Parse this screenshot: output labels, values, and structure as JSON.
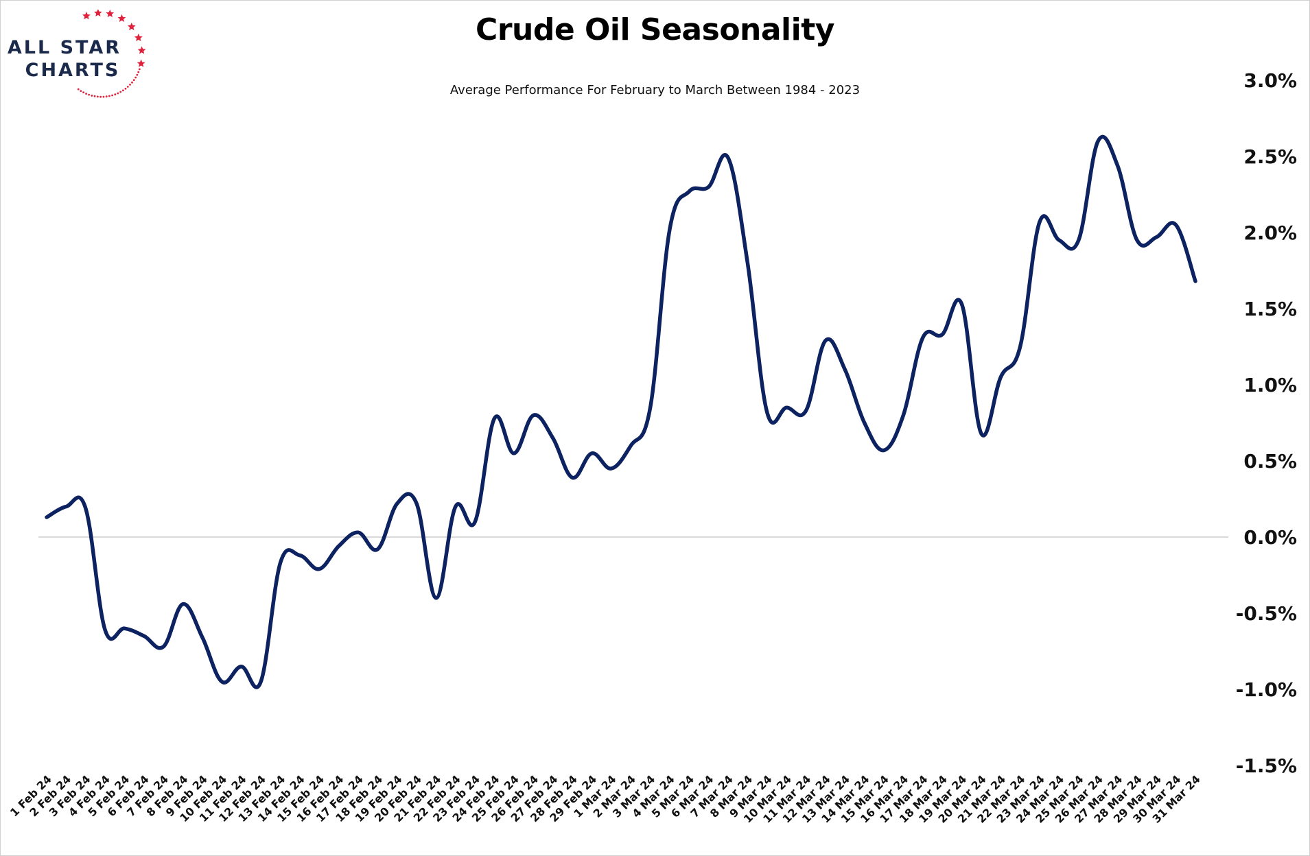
{
  "logo": {
    "line1": "ALL STAR",
    "line2": "CHARTS",
    "primary_color": "#1b2a4a",
    "star_color": "#e0213b"
  },
  "chart_data": {
    "type": "line",
    "title": "Crude Oil Seasonality",
    "subtitle": "Average Performance For February to March Between 1984 - 2023",
    "xlabel": "",
    "ylabel": "",
    "ylim": [
      -1.5,
      3.0
    ],
    "yticks": [
      -1.5,
      -1.0,
      -0.5,
      0.0,
      0.5,
      1.0,
      1.5,
      2.0,
      2.5,
      3.0
    ],
    "ytick_labels": [
      "-1.5%",
      "-1.0%",
      "-0.5%",
      "0.0%",
      "0.5%",
      "1.0%",
      "1.5%",
      "2.0%",
      "2.5%",
      "3.0%"
    ],
    "y_axis_position": "right",
    "zero_line": true,
    "grid": false,
    "line_color": "#0d2260",
    "categories": [
      "1 Feb 24",
      "2 Feb 24",
      "3 Feb 24",
      "4 Feb 24",
      "5 Feb 24",
      "6 Feb 24",
      "7 Feb 24",
      "8 Feb 24",
      "9 Feb 24",
      "10 Feb 24",
      "11 Feb 24",
      "12 Feb 24",
      "13 Feb 24",
      "14 Feb 24",
      "15 Feb 24",
      "16 Feb 24",
      "17 Feb 24",
      "18 Feb 24",
      "19 Feb 24",
      "20 Feb 24",
      "21 Feb 24",
      "22 Feb 24",
      "23 Feb 24",
      "24 Feb 24",
      "25 Feb 24",
      "26 Feb 24",
      "27 Feb 24",
      "28 Feb 24",
      "29 Feb 24",
      "1 Mar 24",
      "2 Mar 24",
      "3 Mar 24",
      "4 Mar 24",
      "5 Mar 24",
      "6 Mar 24",
      "7 Mar 24",
      "8 Mar 24",
      "9 Mar 24",
      "10 Mar 24",
      "11 Mar 24",
      "12 Mar 24",
      "13 Mar 24",
      "14 Mar 24",
      "15 Mar 24",
      "16 Mar 24",
      "17 Mar 24",
      "18 Mar 24",
      "19 Mar 24",
      "20 Mar 24",
      "21 Mar 24",
      "22 Mar 24",
      "23 Mar 24",
      "24 Mar 24",
      "25 Mar 24",
      "26 Mar 24",
      "27 Mar 24",
      "28 Mar 24",
      "29 Mar 24",
      "30 Mar 24",
      "31 Mar 24"
    ],
    "series": [
      {
        "values": [
          0.13,
          0.2,
          0.19,
          -0.61,
          -0.6,
          -0.65,
          -0.72,
          -0.44,
          -0.66,
          -0.95,
          -0.85,
          -0.95,
          -0.17,
          -0.12,
          -0.21,
          -0.06,
          0.03,
          -0.08,
          0.22,
          0.22,
          -0.4,
          0.2,
          0.1,
          0.78,
          0.55,
          0.8,
          0.65,
          0.39,
          0.55,
          0.45,
          0.6,
          0.85,
          2.02,
          2.27,
          2.3,
          2.49,
          1.8,
          0.82,
          0.85,
          0.83,
          1.29,
          1.1,
          0.75,
          0.57,
          0.8,
          1.31,
          1.33,
          1.53,
          0.68,
          1.05,
          1.25,
          2.07,
          1.95,
          1.95,
          2.6,
          2.44,
          1.95,
          1.97,
          2.05,
          1.68
        ]
      }
    ]
  }
}
